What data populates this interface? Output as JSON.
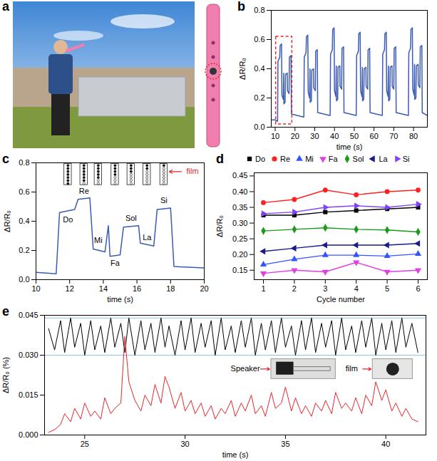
{
  "chart_data": [
    {
      "type": "image",
      "title": "a"
    },
    {
      "type": "line",
      "title": "b",
      "x_label": "time (s)",
      "y_label": "ΔR/R₀",
      "xlim": [
        8,
        87
      ],
      "xticks": [
        10,
        20,
        30,
        40,
        50,
        60,
        70,
        80
      ],
      "ylim": [
        0,
        0.8
      ],
      "yticks": [
        {
          "value": 0,
          "label": "0.0"
        },
        0.2,
        0.4,
        0.6,
        0.8
      ],
      "x": [
        8,
        10,
        11.2,
        11.4,
        12.3,
        12.5,
        13.2,
        13.4,
        14.1,
        14.3,
        14.4,
        15.0,
        15.2,
        16.1,
        16.2,
        17.0,
        17.2,
        18.0,
        18.2,
        24.3,
        24.5,
        24.7,
        25.6,
        25.8,
        26.5,
        26.7,
        27.4,
        27.6,
        27.7,
        28.3,
        28.5,
        29.4,
        29.5,
        30.3,
        30.5,
        31.3,
        31.5,
        37.6,
        37.8,
        38.0,
        38.9,
        39.1,
        39.8,
        40.0,
        40.7,
        40.9,
        41.0,
        41.6,
        41.8,
        42.7,
        42.8,
        43.6,
        43.8,
        44.6,
        44.8,
        50.9,
        51.0,
        51.2,
        52.1,
        52.3,
        53.0,
        53.2,
        53.9,
        54.1,
        54.2,
        54.8,
        55.0,
        55.9,
        56.0,
        56.8,
        57.0,
        57.8,
        58.0,
        64.1,
        64.2,
        64.4,
        65.3,
        65.5,
        66.2,
        66.4,
        67.1,
        67.3,
        67.4,
        68.0,
        68.2,
        69.1,
        69.2,
        70.0,
        70.2,
        71.0,
        71.2,
        77.3,
        77.4,
        77.6,
        78.5,
        78.7,
        79.4,
        79.6,
        80.3,
        80.5,
        80.6,
        81.2,
        81.4,
        82.3,
        82.4,
        83.2,
        83.4,
        84.2,
        84.4,
        87
      ],
      "series": [
        {
          "color": "#3b5bb5",
          "values": [
            0.05,
            0.05,
            0.04,
            0.45,
            0.48,
            0.56,
            0.57,
            0.22,
            0.19,
            0.37,
            0.16,
            0.17,
            0.36,
            0.37,
            0.25,
            0.23,
            0.48,
            0.49,
            0.09,
            0.07,
            0.07,
            0.48,
            0.51,
            0.62,
            0.63,
            0.24,
            0.2,
            0.4,
            0.17,
            0.18,
            0.39,
            0.4,
            0.27,
            0.25,
            0.52,
            0.53,
            0.1,
            0.08,
            0.08,
            0.5,
            0.53,
            0.67,
            0.68,
            0.25,
            0.21,
            0.42,
            0.18,
            0.19,
            0.41,
            0.42,
            0.28,
            0.26,
            0.54,
            0.55,
            0.1,
            0.08,
            0.08,
            0.49,
            0.52,
            0.64,
            0.65,
            0.25,
            0.21,
            0.41,
            0.18,
            0.19,
            0.4,
            0.41,
            0.28,
            0.26,
            0.53,
            0.54,
            0.1,
            0.08,
            0.08,
            0.5,
            0.53,
            0.64,
            0.65,
            0.25,
            0.21,
            0.42,
            0.18,
            0.19,
            0.41,
            0.42,
            0.28,
            0.26,
            0.54,
            0.55,
            0.1,
            0.08,
            0.08,
            0.51,
            0.54,
            0.67,
            0.68,
            0.26,
            0.22,
            0.43,
            0.19,
            0.2,
            0.42,
            0.43,
            0.29,
            0.27,
            0.55,
            0.56,
            0.1,
            0.08
          ]
        }
      ],
      "highlight": {
        "x": [
          10.4,
          18.6
        ],
        "y": [
          0.02,
          0.62
        ],
        "color": "#e8262a",
        "line_style": "dashed"
      }
    },
    {
      "type": "line",
      "title": "c",
      "x_label": "time (s)",
      "y_label": "ΔR/R₀",
      "xlim": [
        10,
        20
      ],
      "xticks": [
        10,
        12,
        14,
        16,
        18,
        20
      ],
      "ylim": [
        0,
        0.8
      ],
      "yticks": [
        {
          "value": 0,
          "label": "0.0"
        },
        0.2,
        0.4,
        0.6,
        0.8
      ],
      "x": [
        10,
        11.2,
        11.4,
        12.3,
        12.5,
        13.2,
        13.4,
        14.1,
        14.3,
        14.4,
        15.0,
        15.2,
        16.1,
        16.2,
        17.0,
        17.2,
        18.0,
        18.2,
        20
      ],
      "series": [
        {
          "color": "#3b5bb5",
          "values": [
            0.05,
            0.04,
            0.46,
            0.48,
            0.55,
            0.56,
            0.21,
            0.19,
            0.37,
            0.16,
            0.17,
            0.36,
            0.37,
            0.25,
            0.23,
            0.48,
            0.49,
            0.09,
            0.08
          ]
        }
      ],
      "annotations": [
        {
          "text": "Do",
          "x": 11.9,
          "y": 0.41
        },
        {
          "text": "Re",
          "x": 12.85,
          "y": 0.605
        },
        {
          "text": "Mi",
          "x": 13.7,
          "y": 0.27
        },
        {
          "text": "Fa",
          "x": 14.7,
          "y": 0.11
        },
        {
          "text": "Sol",
          "x": 15.65,
          "y": 0.42
        },
        {
          "text": "La",
          "x": 16.6,
          "y": 0.29
        },
        {
          "text": "Si",
          "x": 17.6,
          "y": 0.54
        }
      ],
      "callout": {
        "text": "film",
        "x": 19.3,
        "y": 0.74,
        "color": "#e8262a"
      }
    },
    {
      "type": "line",
      "title": "d",
      "x_label": "Cycle number",
      "y_label": "ΔR/R₀",
      "legend": "top",
      "xlim": [
        0.7,
        6.3
      ],
      "xticks": [
        1,
        2,
        3,
        4,
        5,
        6
      ],
      "ylim": [
        0.12,
        0.46
      ],
      "yticks": [
        0.15,
        {
          "value": 0.2,
          "label": "0.20"
        },
        0.25,
        {
          "value": 0.3,
          "label": "0.30"
        },
        0.35,
        {
          "value": 0.4,
          "label": "0.40"
        },
        0.45
      ],
      "x": [
        1,
        2,
        3,
        4,
        5,
        6
      ],
      "series": [
        {
          "name": "Do",
          "color": "#000000",
          "marker": "square",
          "values": [
            0.325,
            0.325,
            0.335,
            0.34,
            0.345,
            0.35
          ]
        },
        {
          "name": "Re",
          "color": "#ff2020",
          "marker": "circle",
          "values": [
            0.365,
            0.375,
            0.405,
            0.39,
            0.4,
            0.405
          ]
        },
        {
          "name": "Mi",
          "color": "#3355ff",
          "marker": "triangle-up",
          "values": [
            0.168,
            0.185,
            0.198,
            0.198,
            0.195,
            0.202
          ]
        },
        {
          "name": "Fa",
          "color": "#e040e0",
          "marker": "triangle-down",
          "values": [
            0.14,
            0.15,
            0.145,
            0.175,
            0.145,
            0.15
          ]
        },
        {
          "name": "Sol",
          "color": "#1a9a1a",
          "marker": "diamond",
          "values": [
            0.275,
            0.28,
            0.285,
            0.28,
            0.278,
            0.272
          ]
        },
        {
          "name": "La",
          "color": "#1a1a8c",
          "marker": "triangle-left",
          "values": [
            0.21,
            0.22,
            0.23,
            0.23,
            0.23,
            0.235
          ]
        },
        {
          "name": "Si",
          "color": "#8040ff",
          "marker": "triangle-right",
          "values": [
            0.33,
            0.335,
            0.35,
            0.355,
            0.35,
            0.36
          ]
        }
      ]
    },
    {
      "type": "line",
      "title": "e",
      "x_label": "time (s)",
      "y_label": "ΔR/R₀ (%)",
      "xlim": [
        23,
        42
      ],
      "xticks": [
        25,
        30,
        35,
        40
      ],
      "ylim": [
        0,
        0.045
      ],
      "yticks": [
        {
          "value": 0,
          "label": "0.000"
        },
        0.015,
        {
          "value": 0.03,
          "label": "0.030"
        },
        0.045
      ],
      "x": [
        23.2,
        23.5,
        23.8,
        24.0,
        24.3,
        24.5,
        24.8,
        25.0,
        25.3,
        25.5,
        25.8,
        26.0,
        26.3,
        26.5,
        26.8,
        27.0,
        27.2,
        27.5,
        27.8,
        28.0,
        28.3,
        28.5,
        28.8,
        29.0,
        29.2,
        29.5,
        29.8,
        30.0,
        30.3,
        30.5,
        30.8,
        31.0,
        31.3,
        31.5,
        31.8,
        32.0,
        32.3,
        32.5,
        32.8,
        33.0,
        33.3,
        33.5,
        33.8,
        34.0,
        34.3,
        34.5,
        34.8,
        35.0,
        35.3,
        35.5,
        35.8,
        36.0,
        36.3,
        36.5,
        36.8,
        37.0,
        37.3,
        37.5,
        37.8,
        38.0,
        38.3,
        38.5,
        38.8,
        39.0,
        39.3,
        39.5,
        39.8,
        40.0,
        40.3,
        40.5,
        40.8,
        41.0,
        41.3,
        41.6
      ],
      "series": [
        {
          "color": "#000000",
          "values": [
            0.04,
            0.032,
            0.043,
            0.031,
            0.044,
            0.033,
            0.042,
            0.03,
            0.043,
            0.032,
            0.041,
            0.031,
            0.044,
            0.033,
            0.042,
            0.031,
            0.044,
            0.03,
            0.043,
            0.032,
            0.042,
            0.031,
            0.044,
            0.033,
            0.041,
            0.03,
            0.043,
            0.032,
            0.044,
            0.031,
            0.042,
            0.033,
            0.043,
            0.03,
            0.044,
            0.032,
            0.041,
            0.031,
            0.043,
            0.033,
            0.044,
            0.03,
            0.042,
            0.032,
            0.043,
            0.031,
            0.044,
            0.033,
            0.041,
            0.03,
            0.043,
            0.032,
            0.044,
            0.031,
            0.042,
            0.033,
            0.043,
            0.03,
            0.044,
            0.032,
            0.041,
            0.031,
            0.043,
            0.033,
            0.044,
            0.03,
            0.042,
            0.032,
            0.043,
            0.031,
            0.044,
            0.033,
            0.042,
            0.031
          ]
        },
        {
          "color": "#e8262a",
          "values": [
            0.001,
            0.002,
            0.004,
            0.008,
            0.005,
            0.01,
            0.006,
            0.012,
            0.007,
            0.009,
            0.006,
            0.014,
            0.008,
            0.01,
            0.012,
            0.037,
            0.02,
            0.013,
            0.009,
            0.015,
            0.011,
            0.019,
            0.012,
            0.022,
            0.018,
            0.01,
            0.016,
            0.009,
            0.013,
            0.008,
            0.012,
            0.007,
            0.011,
            0.006,
            0.01,
            0.008,
            0.013,
            0.007,
            0.012,
            0.009,
            0.015,
            0.008,
            0.011,
            0.007,
            0.016,
            0.01,
            0.012,
            0.018,
            0.009,
            0.014,
            0.008,
            0.011,
            0.007,
            0.012,
            0.009,
            0.013,
            0.008,
            0.016,
            0.01,
            0.012,
            0.009,
            0.014,
            0.008,
            0.015,
            0.011,
            0.02,
            0.013,
            0.017,
            0.009,
            0.012,
            0.007,
            0.01,
            0.006,
            0.005
          ]
        }
      ],
      "hlines": [
        {
          "y": 0.03,
          "color": "#8ec5e6"
        },
        {
          "y": 0.044,
          "color": "#8ec5e6"
        }
      ],
      "annotations": [
        {
          "text": "Speaker",
          "x": 33.0,
          "y": 0.0248
        },
        {
          "text": "film",
          "x": 38.3,
          "y": 0.0248
        }
      ]
    }
  ]
}
